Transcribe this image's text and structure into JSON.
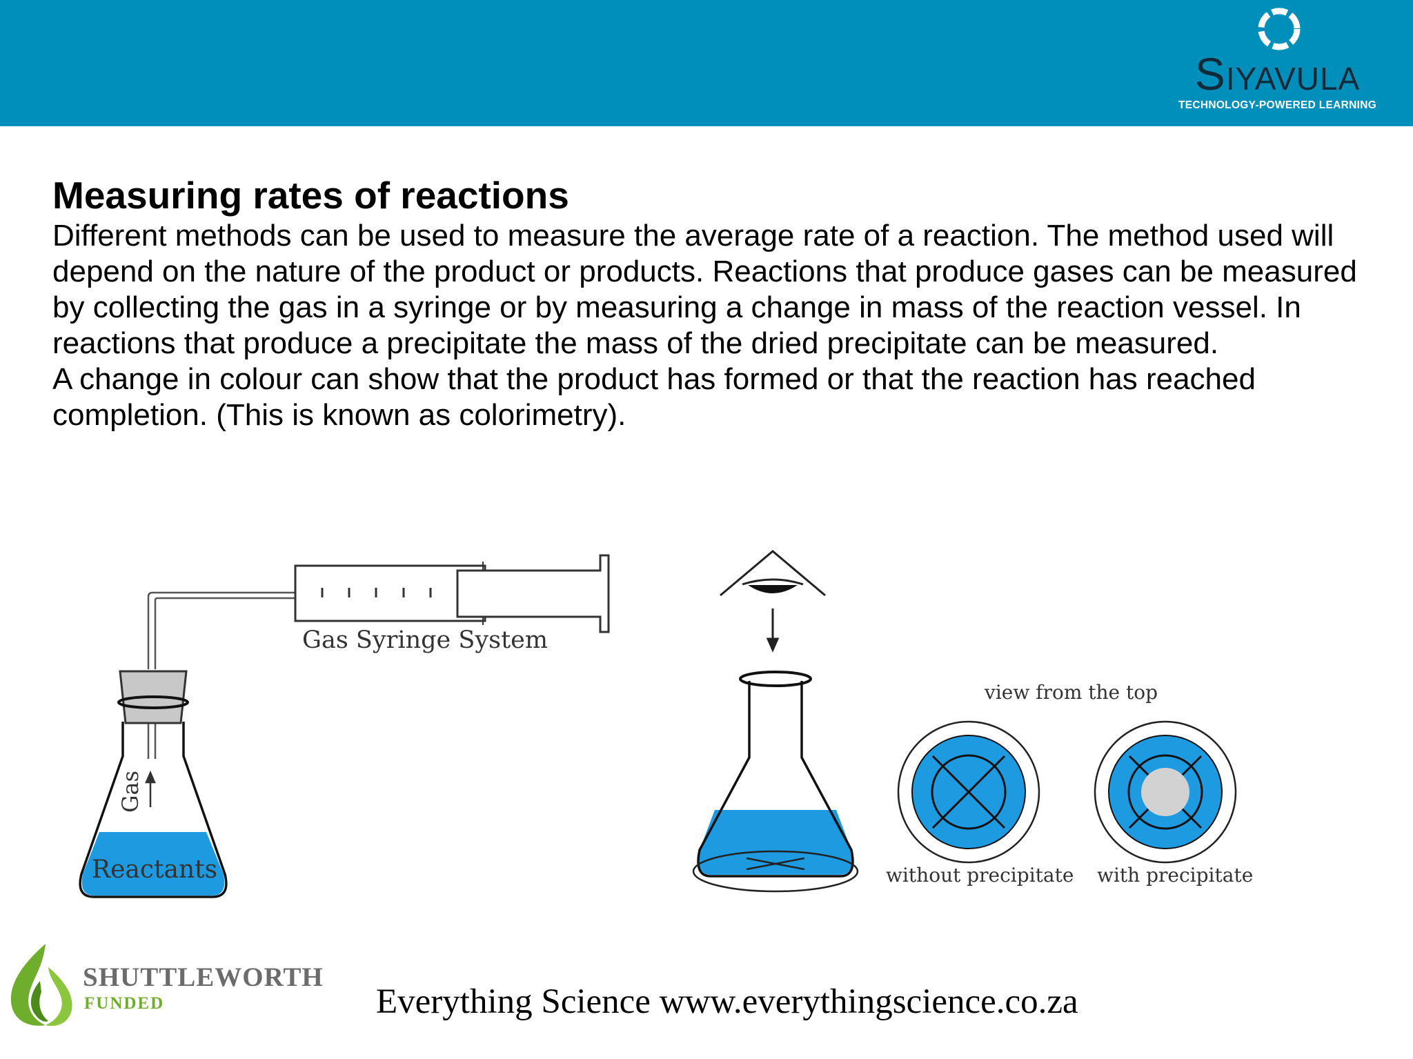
{
  "header": {
    "brand_name": "Siyavula",
    "brand_tagline": "TECHNOLOGY-POWERED LEARNING",
    "background_color": "#008fba"
  },
  "content": {
    "title": "Measuring rates of reactions",
    "paragraph_1": "Different methods can be used to measure the average rate of a reaction. The method used will depend on the nature of the product or products. Reactions that produce gases can be measured by collecting the gas in a syringe or by measuring a change in mass of the reaction vessel. In reactions that produce a precipitate the mass of the dried precipitate can be measured.",
    "paragraph_2": "A change in colour can show that the product has formed or that the reaction has reached completion. (This is known as colorimetry)."
  },
  "diagram": {
    "syringe_label": "Gas Syringe System",
    "gas_label": "Gas",
    "reactants_label": "Reactants",
    "view_label": "view from the top",
    "without_label": "without precipitate",
    "with_label": "with precipitate",
    "liquid_color": "#1e9be0"
  },
  "footer": {
    "logo_name": "SHUTTLEWORTH",
    "logo_sub": "FUNDED",
    "site_text": "Everything Science www.everythingscience.co.za"
  }
}
